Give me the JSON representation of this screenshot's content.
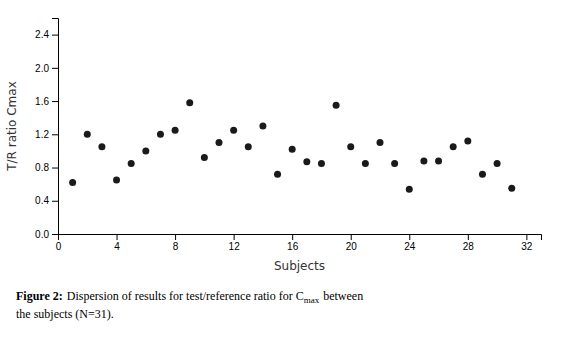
{
  "chart_data": {
    "type": "scatter",
    "x_label": "Subjects",
    "y_label": "T/R ratio Cmax",
    "annotations": [
      "Figure 2:",
      "Dispersion of results for test/reference ratio for C",
      "max",
      "between",
      "the subjects (N=31)."
    ],
    "x": [
      1,
      2,
      3,
      4,
      5,
      6,
      7,
      8,
      9,
      10,
      11,
      12,
      13,
      14,
      15,
      16,
      17,
      18,
      19,
      20,
      21,
      22,
      23,
      24,
      25,
      26,
      27,
      28,
      29,
      30,
      31
    ],
    "y": [
      0.62,
      1.2,
      1.05,
      0.65,
      0.85,
      1.0,
      1.2,
      1.25,
      1.58,
      0.92,
      1.1,
      1.25,
      1.05,
      1.3,
      0.72,
      1.02,
      0.87,
      0.85,
      1.55,
      1.05,
      0.85,
      1.1,
      0.85,
      0.54,
      0.88,
      0.88,
      1.05,
      1.12,
      0.72,
      0.85,
      0.55
    ],
    "color": "#1a1a1a",
    "xlim": [
      0,
      33
    ],
    "ylim": [
      0,
      2.6
    ],
    "xticks": [
      0,
      4,
      8,
      12,
      16,
      20,
      24,
      28,
      32
    ],
    "yticks": [
      {
        "value": 0,
        "label": "0.0"
      },
      0.4,
      0.8,
      1.2,
      1.6,
      {
        "value": 2.0,
        "label": "2.0"
      },
      2.4
    ],
    "grid": false
  }
}
